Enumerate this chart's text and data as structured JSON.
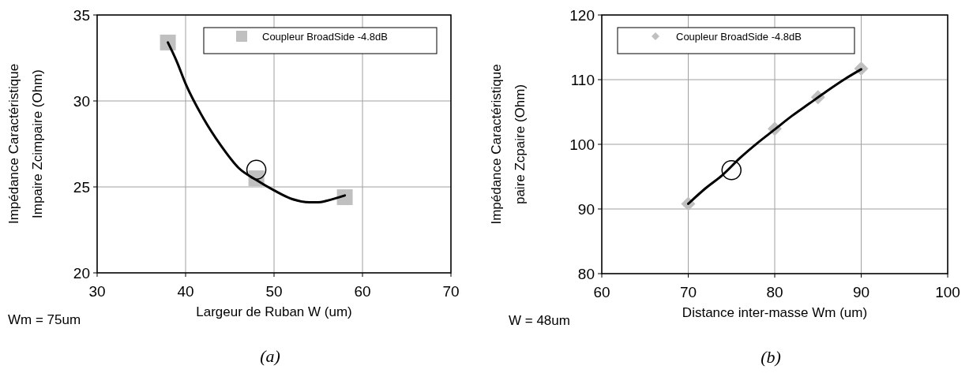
{
  "chart_data": [
    {
      "type": "scatter",
      "xlabel": "Largeur de Ruban W (um)",
      "ylabel": "Impédance Caractéristique\nImpaire Zcimpaire (Ohm)",
      "xlim": [
        30,
        70
      ],
      "xticks": [
        30,
        40,
        50,
        60,
        70
      ],
      "ylim": [
        20,
        35
      ],
      "yticks": [
        20,
        25,
        30,
        35
      ],
      "grid": true,
      "legend": "top right",
      "annotations": [
        "Wm = 75um",
        "(a)"
      ],
      "series": [
        {
          "name": "Coupleur BroadSide -4.8dB",
          "marker": "square",
          "color": "#c0c0c0",
          "x": [
            38,
            48,
            58
          ],
          "values": [
            33.4,
            25.5,
            24.4
          ]
        },
        {
          "type": "line",
          "color": "#000000",
          "x": [
            38,
            39,
            40,
            42,
            44,
            46,
            48,
            50,
            52,
            54,
            55,
            56,
            58
          ],
          "values": [
            33.4,
            32.3,
            31.0,
            29.0,
            27.4,
            26.1,
            25.4,
            24.8,
            24.3,
            24.1,
            24.1,
            24.2,
            24.5
          ]
        },
        {
          "marker": "circle",
          "color": "#000000",
          "x": [
            48
          ],
          "values": [
            26
          ]
        }
      ]
    },
    {
      "type": "scatter",
      "xlabel": "Distance inter-masse Wm (um)",
      "ylabel": "Impédance Caractéristique\npaire Zcpaire (Ohm)",
      "xlim": [
        60,
        100
      ],
      "xticks": [
        60,
        70,
        80,
        90,
        100
      ],
      "ylim": [
        80,
        120
      ],
      "yticks": [
        80,
        90,
        100,
        110,
        120
      ],
      "grid": true,
      "legend": "top",
      "annotations": [
        "W = 48um",
        "(b)"
      ],
      "series": [
        {
          "name": "Coupleur BroadSide -4.8dB",
          "marker": "diamond",
          "color": "#c0c0c0",
          "x": [
            70,
            80,
            85,
            90
          ],
          "values": [
            90.8,
            102.4,
            107.3,
            111.7
          ]
        },
        {
          "type": "line",
          "color": "#000000",
          "x": [
            70,
            72,
            74,
            76,
            78,
            80,
            82,
            84,
            86,
            88,
            90
          ],
          "values": [
            90.8,
            93.2,
            95.3,
            97.9,
            100.2,
            102.3,
            104.4,
            106.3,
            108.2,
            110.0,
            111.6
          ]
        },
        {
          "marker": "circle",
          "color": "#000000",
          "x": [
            75
          ],
          "values": [
            96
          ]
        }
      ]
    }
  ]
}
